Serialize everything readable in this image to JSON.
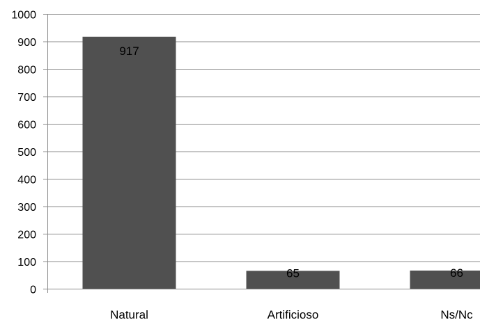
{
  "chart_data": {
    "type": "bar",
    "categories": [
      "Natural",
      "Artificioso",
      "Ns/Nc"
    ],
    "values": [
      917,
      65,
      66
    ],
    "data_labels": [
      "917",
      "65",
      "66"
    ],
    "title": "",
    "xlabel": "",
    "ylabel": "",
    "ylim": [
      0,
      1000
    ],
    "yticks": [
      0,
      100,
      200,
      300,
      400,
      500,
      600,
      700,
      800,
      900,
      1000
    ],
    "grid": true,
    "legend": "none",
    "colors": {
      "bar": "#505050",
      "grid": "#8c8c8c",
      "axis": "#8c8c8c",
      "text": "#000000"
    }
  }
}
